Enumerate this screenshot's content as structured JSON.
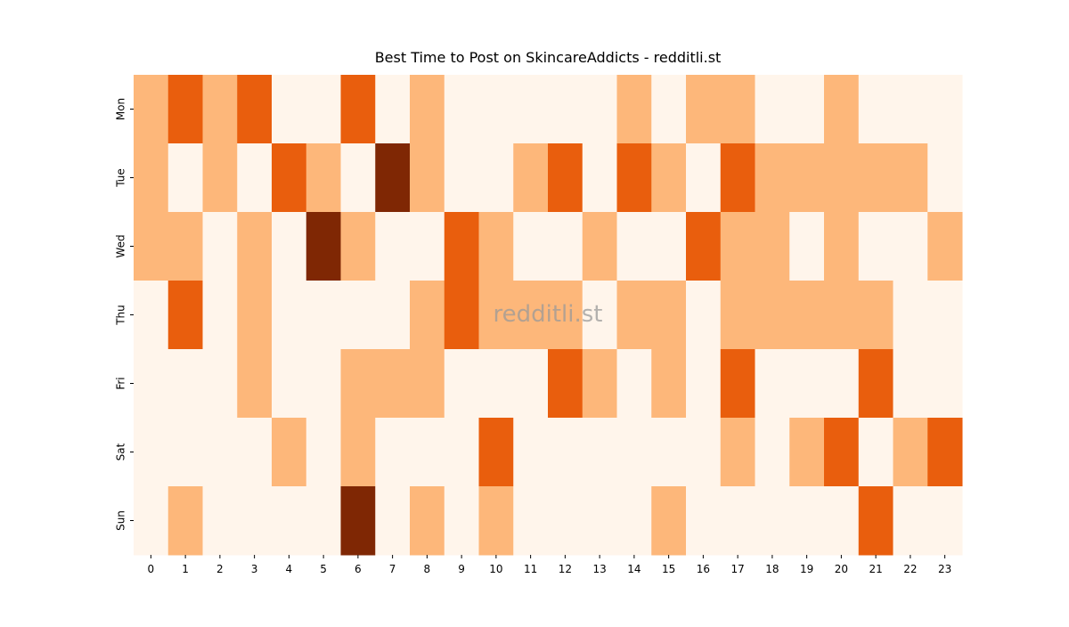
{
  "chart_data": {
    "type": "heatmap",
    "title": "Best Time to Post on SkincareAddicts - redditli.st",
    "watermark": "redditli.st",
    "x": [
      "0",
      "1",
      "2",
      "3",
      "4",
      "5",
      "6",
      "7",
      "8",
      "9",
      "10",
      "11",
      "12",
      "13",
      "14",
      "15",
      "16",
      "17",
      "18",
      "19",
      "20",
      "21",
      "22",
      "23"
    ],
    "y": [
      "Mon",
      "Tue",
      "Wed",
      "Thu",
      "Fri",
      "Sat",
      "Sun"
    ],
    "values": [
      [
        1,
        2,
        1,
        2,
        0,
        0,
        2,
        0,
        1,
        0,
        0,
        0,
        0,
        0,
        1,
        0,
        1,
        1,
        0,
        0,
        1,
        0,
        0,
        0
      ],
      [
        1,
        0,
        1,
        0,
        2,
        1,
        0,
        3,
        1,
        0,
        0,
        1,
        2,
        0,
        2,
        1,
        0,
        2,
        1,
        1,
        1,
        1,
        1,
        0
      ],
      [
        1,
        1,
        0,
        1,
        0,
        3,
        1,
        0,
        0,
        2,
        1,
        0,
        0,
        1,
        0,
        0,
        2,
        1,
        1,
        0,
        1,
        0,
        0,
        1
      ],
      [
        0,
        2,
        0,
        1,
        0,
        0,
        0,
        0,
        1,
        2,
        1,
        1,
        1,
        0,
        1,
        1,
        0,
        1,
        1,
        1,
        1,
        1,
        0,
        0
      ],
      [
        0,
        0,
        0,
        1,
        0,
        0,
        1,
        1,
        1,
        0,
        0,
        0,
        2,
        1,
        0,
        1,
        0,
        2,
        0,
        0,
        0,
        2,
        0,
        0
      ],
      [
        0,
        0,
        0,
        0,
        1,
        0,
        1,
        0,
        0,
        0,
        2,
        0,
        0,
        0,
        0,
        0,
        0,
        1,
        0,
        1,
        2,
        0,
        1,
        2
      ],
      [
        0,
        1,
        0,
        0,
        0,
        0,
        3,
        0,
        1,
        0,
        1,
        0,
        0,
        0,
        0,
        1,
        0,
        0,
        0,
        0,
        0,
        2,
        0,
        0
      ]
    ],
    "zlim": [
      0,
      3
    ],
    "colorscale": [
      "#fff5eb",
      "#fdb77a",
      "#e95e0d",
      "#7f2704"
    ]
  }
}
